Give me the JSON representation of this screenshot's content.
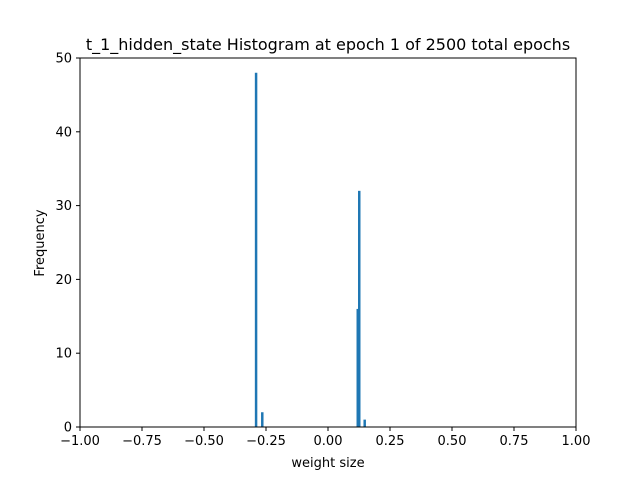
{
  "chart_data": {
    "type": "bar",
    "title": "t_1_hidden_state Histogram at epoch 1 of 2500 total epochs",
    "xlabel": "weight size",
    "ylabel": "Frequency",
    "xlim": [
      -1.0,
      1.0
    ],
    "ylim": [
      0,
      50
    ],
    "x_ticks": [
      -1.0,
      -0.75,
      -0.5,
      -0.25,
      0.0,
      0.25,
      0.5,
      0.75,
      1.0
    ],
    "x_tick_labels": [
      "−1.00",
      "−0.75",
      "−0.50",
      "−0.25",
      "0.00",
      "0.25",
      "0.50",
      "0.75",
      "1.00"
    ],
    "y_ticks": [
      0,
      10,
      20,
      30,
      40,
      50
    ],
    "y_tick_labels": [
      "0",
      "10",
      "20",
      "30",
      "40",
      "50"
    ],
    "grid": false,
    "bar_width": 0.01,
    "bins": [
      {
        "x": -0.29,
        "value": 48
      },
      {
        "x": -0.265,
        "value": 2
      },
      {
        "x": 0.12,
        "value": 16
      },
      {
        "x": 0.126,
        "value": 32
      },
      {
        "x": 0.148,
        "value": 1
      }
    ],
    "bar_color": "#1f77b4"
  }
}
